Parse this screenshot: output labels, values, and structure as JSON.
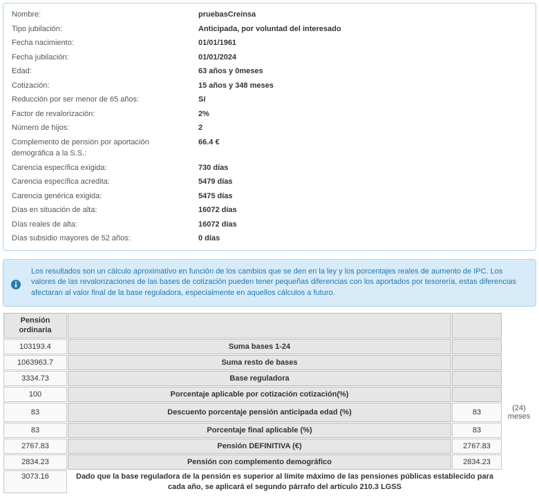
{
  "info": {
    "rows": [
      {
        "label": "Nombre:",
        "value": "pruebasCreinsa"
      },
      {
        "label": "Tipo jubilación:",
        "value": "Anticipada, por voluntad del interesado"
      },
      {
        "label": "Fecha nacimiento:",
        "value": "01/01/1961"
      },
      {
        "label": "Fecha jubilación:",
        "value": "01/01/2024"
      },
      {
        "label": "Edad:",
        "value": "63 años y 0meses"
      },
      {
        "label": "Cotización:",
        "value": "15 años y 348 meses"
      },
      {
        "label": "Reducción por ser menor de 65 años:",
        "value": "Sí"
      },
      {
        "label": "Factor de revalorización:",
        "value": "2%"
      },
      {
        "label": "Número de hijos:",
        "value": "2"
      },
      {
        "label": "Complemento de pensión por aportación demográfica a la S.S.:",
        "value": "66.4 €"
      },
      {
        "label": "Carencia específica exigida:",
        "value": "730 días"
      },
      {
        "label": "Carencia específica acredita:",
        "value": "5479 días"
      },
      {
        "label": "Carencia genérica exigida:",
        "value": "5475 días"
      },
      {
        "label": "Días en situación de alta:",
        "value": "16072 días"
      },
      {
        "label": "Días reales de alta:",
        "value": "16072 días"
      },
      {
        "label": "Días subsidio mayores de 52 años:",
        "value": "0 días"
      }
    ]
  },
  "notice": {
    "text": "Los resultados son un cálculo aproximativo en función de los cambios que se den en la ley y los porcentajes reales de aumento de IPC. Los valores de las revalorizaciones de las bases de cotización pueden tener pequeñas diferencias con los aportados por tesorería, estas diferencias afectaran al valor final de la base reguladora, especialmente en aquellos cálculos a futuro."
  },
  "calc": {
    "header_left": "Pensión ordinaria",
    "rows": [
      {
        "left": "103193.4",
        "label": "Suma bases 1-24",
        "right": "",
        "side": ""
      },
      {
        "left": "1063963.7",
        "label": "Suma resto de bases",
        "right": "",
        "side": ""
      },
      {
        "left": "3334.73",
        "label": "Base reguladora",
        "right": "",
        "side": ""
      },
      {
        "left": "100",
        "label": "Porcentaje aplicable por cotización cotización(%)",
        "right": "",
        "side": ""
      },
      {
        "left": "83",
        "label": "Descuento porcentaje pensión anticipada edad (%)",
        "right": "83",
        "side": "(24) meses"
      },
      {
        "left": "83",
        "label": "Porcentaje final aplicable (%)",
        "right": "83",
        "side": ""
      },
      {
        "left": "2767.83",
        "label": "Pensión DEFINITIVA (€)",
        "right": "2767.83",
        "side": ""
      },
      {
        "left": "2834.23",
        "label": "Pensión con complemento demográfico",
        "right": "2834.23",
        "side": ""
      }
    ],
    "foot_left": "3073.16",
    "foot_label": "Dado que la base reguladora de la pensión es superior al límite máximo de las pensiones públicas establecido para cada año, se aplicará el segundo párrafo del artículo 210.3 LGSS"
  }
}
